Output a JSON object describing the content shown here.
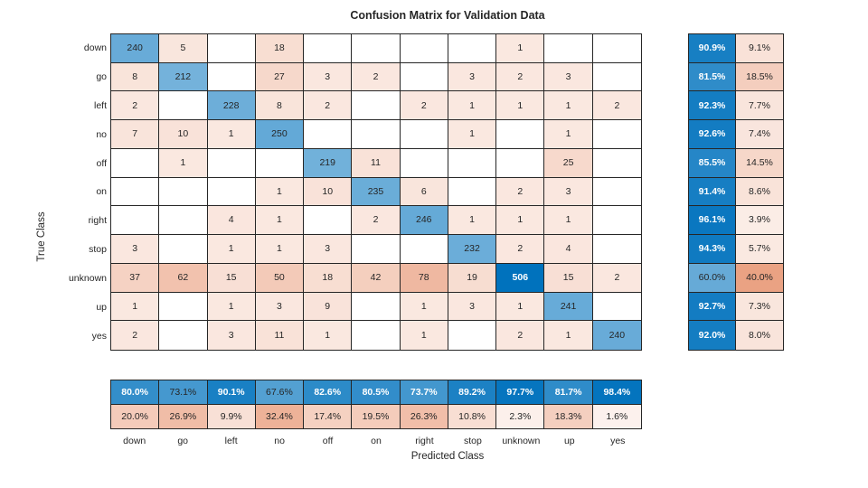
{
  "chart_data": {
    "type": "heatmap",
    "title": "Confusion Matrix for Validation Data",
    "xlabel": "Predicted Class",
    "ylabel": "True Class",
    "categories": [
      "down",
      "go",
      "left",
      "no",
      "off",
      "on",
      "right",
      "stop",
      "unknown",
      "up",
      "yes"
    ],
    "matrix": [
      [
        240,
        5,
        null,
        18,
        null,
        null,
        null,
        null,
        1,
        null,
        null
      ],
      [
        8,
        212,
        null,
        27,
        3,
        2,
        null,
        3,
        2,
        3,
        null
      ],
      [
        2,
        null,
        228,
        8,
        2,
        null,
        2,
        1,
        1,
        1,
        2
      ],
      [
        7,
        10,
        1,
        250,
        null,
        null,
        null,
        1,
        null,
        1,
        null
      ],
      [
        null,
        1,
        null,
        null,
        219,
        11,
        null,
        null,
        null,
        25,
        null
      ],
      [
        null,
        null,
        null,
        1,
        10,
        235,
        6,
        null,
        2,
        3,
        null
      ],
      [
        null,
        null,
        4,
        1,
        null,
        2,
        246,
        1,
        1,
        1,
        null
      ],
      [
        3,
        null,
        1,
        1,
        3,
        null,
        null,
        232,
        2,
        4,
        null
      ],
      [
        37,
        62,
        15,
        50,
        18,
        42,
        78,
        19,
        506,
        15,
        2
      ],
      [
        1,
        null,
        1,
        3,
        9,
        null,
        1,
        3,
        1,
        241,
        null
      ],
      [
        2,
        null,
        3,
        11,
        1,
        null,
        1,
        null,
        2,
        1,
        240
      ]
    ],
    "row_summary": {
      "correct_pct": [
        90.9,
        81.5,
        92.3,
        92.6,
        85.5,
        91.4,
        96.1,
        94.3,
        60.0,
        92.7,
        92.0
      ],
      "incorrect_pct": [
        9.1,
        18.5,
        7.7,
        7.4,
        14.5,
        8.6,
        3.9,
        5.7,
        40.0,
        7.3,
        8.0
      ]
    },
    "col_summary": {
      "correct_pct": [
        80.0,
        73.1,
        90.1,
        67.6,
        82.6,
        80.5,
        73.7,
        89.2,
        97.7,
        81.7,
        98.4
      ],
      "incorrect_pct": [
        20.0,
        26.9,
        9.9,
        32.4,
        17.4,
        19.5,
        26.3,
        10.8,
        2.3,
        18.3,
        1.6
      ]
    },
    "legend_position": "none",
    "grid": true,
    "colors": {
      "diagonal_base": "#0072BD",
      "off_diagonal_base": "#D95319",
      "grid_line": "#262626",
      "empty_cell": "#ffffff",
      "dark_text": "#262626",
      "light_text": "#ffffff"
    }
  }
}
